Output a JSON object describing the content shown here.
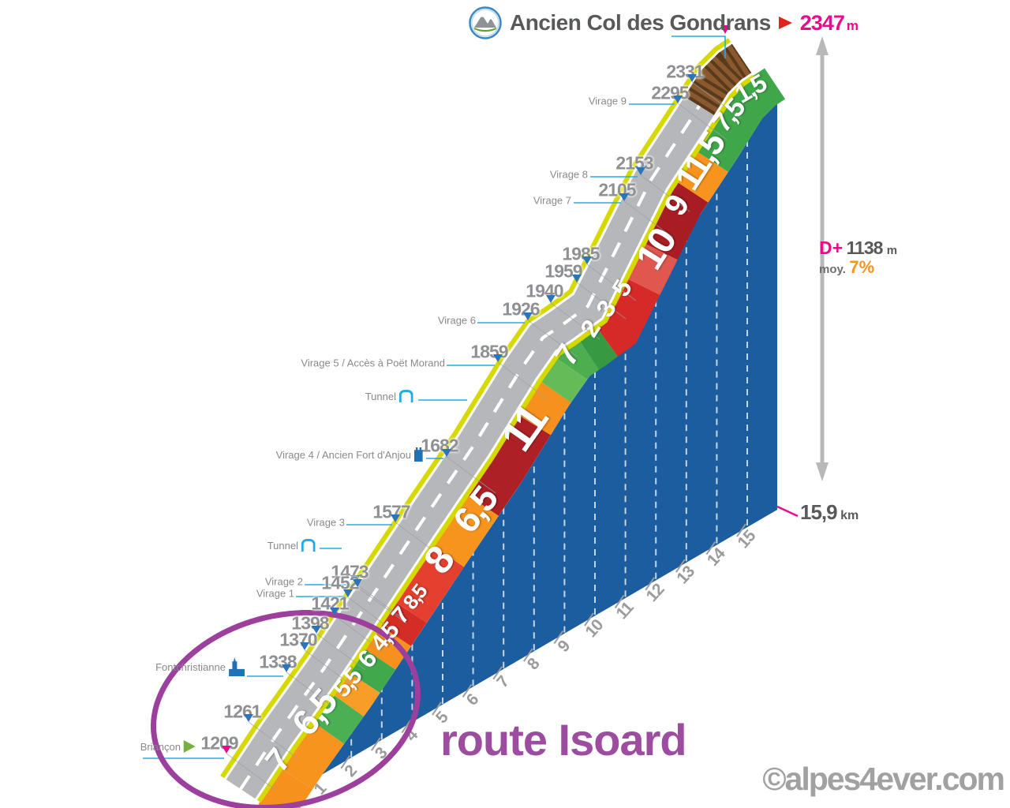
{
  "header": {
    "summit_name": "Ancien Col des Gondrans",
    "summit_altitude": "2347",
    "summit_altitude_unit": "m"
  },
  "stats": {
    "elevation_gain_label": "D+",
    "elevation_gain_value": "1138",
    "elevation_gain_unit": "m",
    "average_label": "moy.",
    "average_value": "7%",
    "total_distance": "15,9",
    "total_distance_unit": "km"
  },
  "annotations": {
    "route_label": "route Isoard",
    "watermark": "©alpes4ever.com"
  },
  "colors": {
    "magenta": "#e70c8e",
    "cyan_leader": "#29abe2",
    "marker_blue": "#2d74b9",
    "wall_blue": "#1b5d9e",
    "road_gray": "#b5b7ba",
    "road_edge_yellow": "#d6d900",
    "gravel_brown": "#8a5a2e",
    "route_purple": "#9c4da0",
    "ellipse_purple": "#9c3f9d",
    "gradient_green": "#3fa74a",
    "gradient_orange": "#f7941d",
    "gradient_red": "#d62a28",
    "gradient_dark_red": "#a81c23"
  },
  "chart_data": {
    "type": "area",
    "title": "Ancien Col des Gondrans",
    "xlabel": "km",
    "ylabel": "m",
    "x_range": [
      0,
      15.9
    ],
    "start_altitude_m": 1209,
    "summit_altitude_m": 2347,
    "elevation_gain_m": 1138,
    "avg_gradient_pct": 7,
    "total_distance_km": 15.9,
    "km_ticks": [
      0,
      1,
      2,
      3,
      4,
      5,
      6,
      7,
      8,
      9,
      10,
      11,
      12,
      13,
      14,
      15
    ],
    "waypoints": [
      {
        "altitude_m": 2331
      },
      {
        "altitude_m": 2295,
        "name": "Virage 9"
      },
      {
        "altitude_m": 2153,
        "name": "Virage 8"
      },
      {
        "altitude_m": 2105,
        "name": "Virage 7"
      },
      {
        "altitude_m": 1985
      },
      {
        "altitude_m": 1959
      },
      {
        "altitude_m": 1940
      },
      {
        "altitude_m": 1926,
        "name": "Virage 6"
      },
      {
        "altitude_m": 1859,
        "name": "Virage 5 / Accès à Poët Morand"
      },
      {
        "name": "Tunnel",
        "icon": "tunnel"
      },
      {
        "altitude_m": 1682,
        "name": "Virage 4 / Ancien Fort d'Anjou",
        "icon": "fort"
      },
      {
        "altitude_m": 1577,
        "name": "Virage 3"
      },
      {
        "name": "Tunnel",
        "icon": "tunnel"
      },
      {
        "altitude_m": 1473
      },
      {
        "altitude_m": 1452,
        "name": "Virage 2"
      },
      {
        "name": "Virage 1"
      },
      {
        "altitude_m": 1421
      },
      {
        "altitude_m": 1398
      },
      {
        "altitude_m": 1370
      },
      {
        "altitude_m": 1338,
        "name": "Fontchristianne",
        "icon": "church"
      },
      {
        "altitude_m": 1261
      },
      {
        "altitude_m": 1209,
        "name": "Briançon",
        "icon": "flag-green",
        "marker": "magenta"
      }
    ],
    "gradient_segments": [
      {
        "label": "7",
        "pct": 7,
        "km_start": 0,
        "km_end": 0.75,
        "color": "#f6911e"
      },
      {
        "label": "6,5",
        "pct": 6.5,
        "km_start": 0.75,
        "km_end": 1.75,
        "color": "#f7941d"
      },
      {
        "label": "5,5",
        "pct": 5.5,
        "km_start": 1.75,
        "km_end": 2.35,
        "color": "#4bb053"
      },
      {
        "label": "6",
        "pct": 6,
        "km_start": 2.35,
        "km_end": 2.85,
        "color": "#f89d28"
      },
      {
        "label": "4,5",
        "pct": 4.5,
        "km_start": 2.85,
        "km_end": 3.35,
        "color": "#41a84c"
      },
      {
        "label": "7",
        "pct": 7,
        "km_start": 3.35,
        "km_end": 3.85,
        "color": "#f6911e"
      },
      {
        "label": "8,5",
        "pct": 8.5,
        "km_start": 3.85,
        "km_end": 4.35,
        "color": "#d42d26"
      },
      {
        "label": "8",
        "pct": 8,
        "km_start": 4.35,
        "km_end": 5.55,
        "color": "#e5402f"
      },
      {
        "label": "6,5",
        "pct": 6.5,
        "km_start": 5.55,
        "km_end": 6.65,
        "color": "#f7941d"
      },
      {
        "label": "11",
        "pct": 11,
        "km_start": 6.65,
        "km_end": 8.35,
        "color": "#ad2025"
      },
      {
        "label": "7",
        "pct": 7,
        "km_start": 8.35,
        "km_end": 9.05,
        "color": "#f6911e"
      },
      {
        "label": "2",
        "pct": 2,
        "km_start": 9.05,
        "km_end": 9.55,
        "color": "#66bb59"
      },
      {
        "label": "3",
        "pct": 3,
        "km_start": 9.55,
        "km_end": 9.95,
        "color": "#4cae4f"
      },
      {
        "label": "5",
        "pct": 5,
        "km_start": 9.95,
        "km_end": 10.35,
        "color": "#379a43"
      },
      {
        "label": "10",
        "pct": 10,
        "km_start": 10.35,
        "km_end": 11.55,
        "color": "#d62a28"
      },
      {
        "label": "9",
        "pct": 9,
        "km_start": 11.55,
        "km_end": 12.25,
        "color": "#e05750"
      },
      {
        "label": "11,5",
        "pct": 11.5,
        "km_start": 12.25,
        "km_end": 13.45,
        "color": "#a81c23"
      },
      {
        "label": "7,5",
        "pct": 7.5,
        "km_start": 13.45,
        "km_end": 14.1,
        "color": "#f7941d"
      },
      {
        "label": "1,5",
        "pct": 1.5,
        "km_start": 14.1,
        "km_end": 15.9,
        "color": "#3fa74a"
      },
      {
        "label": "",
        "pct": null,
        "km_start": 14.75,
        "km_end": 15.9,
        "color": "gravel",
        "surface": "unpaved"
      }
    ]
  }
}
